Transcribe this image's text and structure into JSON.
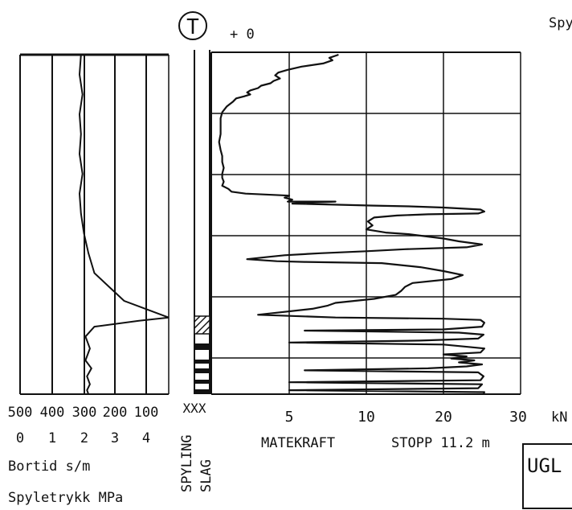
{
  "header": {
    "symbol": "T",
    "offset_label": "+ 0",
    "corner_text": "Spy"
  },
  "left_panel": {
    "bortid_ticks": [
      "500",
      "400",
      "300",
      "200",
      "100"
    ],
    "spyletrykk_ticks": [
      "0",
      "1",
      "2",
      "3",
      "4"
    ],
    "bortid_label": "Bortid s/m",
    "spyletrykk_label": "Spyletrykk MPa"
  },
  "mid_column": {
    "marker": "XXX",
    "vertical_label_1": "SPYLING",
    "vertical_label_2": "SLAG"
  },
  "chart_data": {
    "type": "line",
    "xlabel": "MATEKRAFT",
    "xunit": "kN",
    "x_ticks": [
      "5",
      "10",
      "20",
      "30"
    ],
    "xlim": [
      0,
      30
    ],
    "stop_label": "STOPP 11.2 m",
    "series": [
      {
        "x": [
          8.2,
          7.6,
          7.8,
          7.2,
          5.8,
          4.9,
          4.3,
          4.1,
          4.4,
          4.0,
          3.8,
          3.2,
          3.0,
          2.5,
          2.3,
          2.5,
          2.1,
          1.6,
          1.4,
          1.0,
          0.7,
          0.6,
          0.6,
          0.6,
          0.5,
          0.6,
          0.7,
          0.7,
          0.8,
          0.7,
          0.7,
          0.8,
          0.7,
          1.1,
          1.3,
          2.2,
          5.0,
          4.7,
          5.2,
          4.9,
          8.0,
          5.2,
          11.0,
          15.5,
          20.0,
          24.8,
          25.3,
          24.5,
          18.0,
          14.0,
          11.0,
          10.2,
          10.8,
          10.0,
          12.5,
          15.5,
          18.0,
          20.0,
          22.0,
          25.0,
          23.0,
          15.0,
          10.0,
          7.0,
          4.7,
          3.5,
          2.3,
          4.2,
          6.0,
          12.0,
          17.0,
          20.0,
          22.5,
          21.0,
          16.0,
          15.0,
          14.5,
          13.8,
          11.0,
          8.0,
          7.5,
          7.0,
          6.5,
          3.0,
          8.0,
          20.0,
          24.8,
          25.3,
          25.0,
          20.0,
          6.0,
          22.0,
          25.2,
          24.5,
          17.0,
          5.0,
          20.0,
          25.3,
          24.8,
          20.0,
          23.0,
          21.0,
          24.0,
          22.0,
          25.0,
          23.0,
          18.0,
          6.0,
          24.5,
          25.2,
          24.8,
          5.0,
          25.0,
          24.5,
          5.0,
          25.3,
          25.2
        ],
        "y": [
          0.0,
          0.08,
          0.14,
          0.22,
          0.3,
          0.38,
          0.45,
          0.52,
          0.6,
          0.66,
          0.72,
          0.78,
          0.84,
          0.9,
          0.95,
          1.0,
          1.05,
          1.1,
          1.18,
          1.3,
          1.45,
          1.6,
          1.8,
          2.0,
          2.2,
          2.4,
          2.55,
          2.7,
          2.85,
          3.0,
          3.1,
          3.2,
          3.3,
          3.38,
          3.45,
          3.5,
          3.55,
          3.6,
          3.65,
          3.7,
          3.7,
          3.75,
          3.8,
          3.82,
          3.85,
          3.9,
          3.95,
          4.0,
          4.02,
          4.05,
          4.1,
          4.2,
          4.3,
          4.4,
          4.48,
          4.52,
          4.58,
          4.63,
          4.7,
          4.78,
          4.85,
          4.9,
          4.95,
          5.0,
          5.05,
          5.1,
          5.15,
          5.2,
          5.22,
          5.25,
          5.35,
          5.45,
          5.55,
          5.65,
          5.75,
          5.85,
          5.95,
          6.05,
          6.15,
          6.25,
          6.32,
          6.36,
          6.4,
          6.55,
          6.62,
          6.65,
          6.68,
          6.75,
          6.85,
          6.92,
          6.95,
          7.0,
          7.05,
          7.15,
          7.2,
          7.25,
          7.3,
          7.4,
          7.5,
          7.55,
          7.6,
          7.65,
          7.7,
          7.75,
          7.8,
          7.85,
          7.9,
          7.95,
          8.0,
          8.1,
          8.2,
          8.25,
          8.3,
          8.4,
          8.45,
          8.5,
          8.55
        ]
      }
    ]
  },
  "left_traces": {
    "bortid": {
      "x": [
        0.41,
        0.4,
        0.42,
        0.4,
        0.41,
        0.4,
        0.42,
        0.4,
        0.41,
        0.43,
        0.46,
        0.5,
        0.7,
        0.95,
        1.0,
        0.8,
        0.5,
        0.44,
        0.47,
        0.44,
        0.48,
        0.45,
        0.47,
        0.45,
        0.46
      ],
      "y": [
        0.0,
        0.5,
        1.0,
        1.5,
        2.0,
        2.5,
        3.0,
        3.5,
        4.0,
        4.5,
        5.0,
        5.5,
        6.2,
        6.55,
        6.62,
        6.7,
        6.85,
        7.1,
        7.4,
        7.7,
        7.9,
        8.1,
        8.3,
        8.45,
        8.55
      ]
    }
  },
  "depth_range": [
    0,
    8.55
  ]
}
